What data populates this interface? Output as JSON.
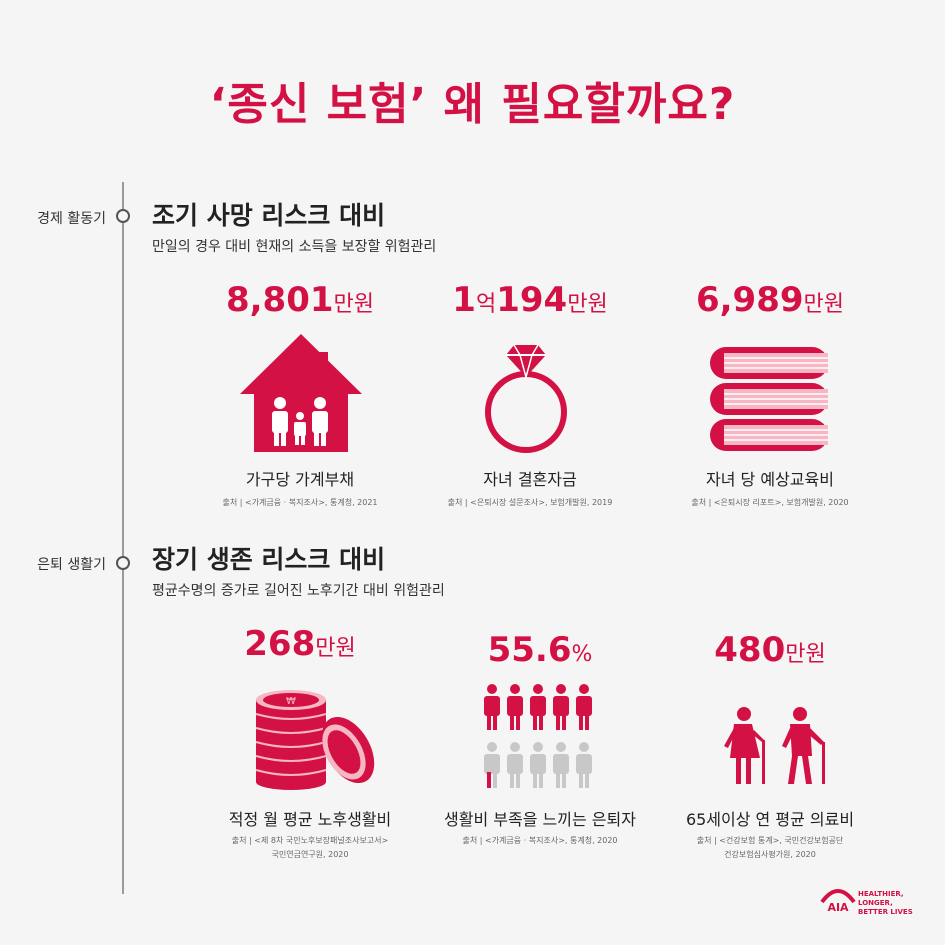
{
  "title": "‘종신 보험’ 왜 필요할까요?",
  "colors": {
    "accent": "#d31145",
    "pink": "#f7b6c4",
    "gray": "#c8c8c8"
  },
  "sections": [
    {
      "stage": "경제 활동기",
      "title": "조기 사망 리스크 대비",
      "subtitle": "만일의 경우 대비 현재의 소득을 보장할 위험관리",
      "items": [
        {
          "value": "8,801",
          "unit": "만원",
          "label": "가구당 가계부채",
          "source": "출처 | <가계금융 · 복지조사>, 통계청, 2021",
          "source2": "",
          "icon": "house-family-icon"
        },
        {
          "value_a": "1",
          "value_mid": "억",
          "value": "194",
          "unit": "만원",
          "label": "자녀 결혼자금",
          "source": "출처 | <은퇴시장 설문조사>, 보험개발원, 2019",
          "source2": "",
          "icon": "diamond-ring-icon"
        },
        {
          "value": "6,989",
          "unit": "만원",
          "label": "자녀 당 예상교육비",
          "source": "출처 | <은퇴시장 리포트>, 보험개발원, 2020",
          "source2": "",
          "icon": "books-icon"
        }
      ]
    },
    {
      "stage": "은퇴 생활기",
      "title": "장기 생존 리스크 대비",
      "subtitle": "평균수명의 증가로 길어진 노후기간 대비 위험관리",
      "items": [
        {
          "value": "268",
          "unit": "만원",
          "label": "적정 월 평균 노후생활비",
          "source": "출처 | <제 8차 국민노후보장패널조사보고서>",
          "source2": "국민연금연구원, 2020",
          "icon": "coins-icon"
        },
        {
          "value": "55.6",
          "unit": "%",
          "label": "생활비 부족을 느끼는 은퇴자",
          "source": "출처 | <가계금융 · 복지조사>, 통계청, 2020",
          "source2": "",
          "icon": "people-grid-icon"
        },
        {
          "value": "480",
          "unit": "만원",
          "label": "65세이상 연 평균 의료비",
          "source": "출처 | <건강보험 통계>, 국민건강보험공단",
          "source2": "건강보험심사평가원, 2020",
          "icon": "elderly-couple-icon"
        }
      ]
    }
  ],
  "logo": {
    "text": "AIA",
    "slogan1": "HEALTHIER, LONGER,",
    "slogan2": "BETTER LIVES"
  }
}
